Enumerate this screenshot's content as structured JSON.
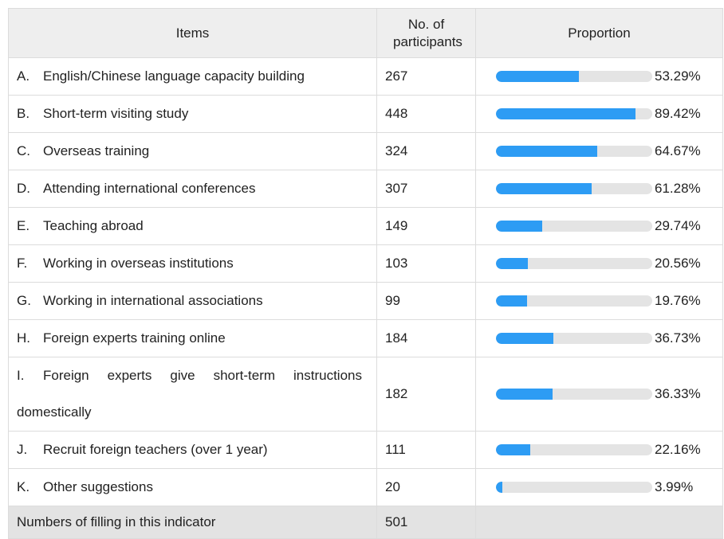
{
  "table": {
    "headers": [
      "Items",
      "No. of participants",
      "Proportion"
    ],
    "rows": [
      {
        "letter": "A.",
        "item": "English/Chinese language capacity building",
        "count": 267,
        "proportion": 53.29,
        "proportion_label": "53.29%"
      },
      {
        "letter": "B.",
        "item": "Short-term visiting study",
        "count": 448,
        "proportion": 89.42,
        "proportion_label": "89.42%"
      },
      {
        "letter": "C.",
        "item": "Overseas training",
        "count": 324,
        "proportion": 64.67,
        "proportion_label": "64.67%"
      },
      {
        "letter": "D.",
        "item": "Attending international conferences",
        "count": 307,
        "proportion": 61.28,
        "proportion_label": "61.28%"
      },
      {
        "letter": "E.",
        "item": "Teaching abroad",
        "count": 149,
        "proportion": 29.74,
        "proportion_label": "29.74%"
      },
      {
        "letter": "F.",
        "item": "Working in overseas institutions",
        "count": 103,
        "proportion": 20.56,
        "proportion_label": "20.56%"
      },
      {
        "letter": "G.",
        "item": "Working in international associations",
        "count": 99,
        "proportion": 19.76,
        "proportion_label": "19.76%"
      },
      {
        "letter": "H.",
        "item": "Foreign experts training online",
        "count": 184,
        "proportion": 36.73,
        "proportion_label": "36.73%"
      },
      {
        "letter": "I.",
        "item": "Foreign experts give short-term instructions domestically",
        "count": 182,
        "proportion": 36.33,
        "proportion_label": "36.33%"
      },
      {
        "letter": "J.",
        "item": "Recruit foreign teachers (over 1 year)",
        "count": 111,
        "proportion": 22.16,
        "proportion_label": "22.16%"
      },
      {
        "letter": "K.",
        "item": "Other suggestions",
        "count": 20,
        "proportion": 3.99,
        "proportion_label": "3.99%"
      }
    ],
    "footer": {
      "label": "Numbers of filling in this indicator",
      "count": 501
    }
  }
}
